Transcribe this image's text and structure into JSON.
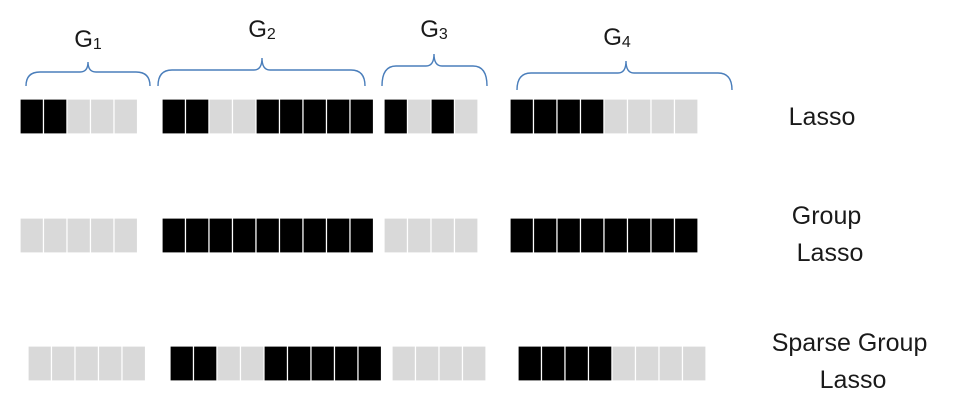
{
  "groups": [
    {
      "label": "G",
      "sub": "1",
      "size": 5
    },
    {
      "label": "G",
      "sub": "2",
      "size": 9
    },
    {
      "label": "G",
      "sub": "3",
      "size": 4
    },
    {
      "label": "G",
      "sub": "4",
      "size": 8
    }
  ],
  "rows": [
    {
      "label_lines": [
        "Lasso"
      ],
      "cells": [
        [
          1,
          1,
          0,
          0,
          0
        ],
        [
          1,
          1,
          0,
          0,
          1,
          1,
          1,
          1,
          1
        ],
        [
          1,
          0,
          1,
          0
        ],
        [
          1,
          1,
          1,
          1,
          0,
          0,
          0,
          0
        ]
      ]
    },
    {
      "label_lines": [
        "Group",
        "Lasso"
      ],
      "cells": [
        [
          0,
          0,
          0,
          0,
          0
        ],
        [
          1,
          1,
          1,
          1,
          1,
          1,
          1,
          1,
          1
        ],
        [
          0,
          0,
          0,
          0
        ],
        [
          1,
          1,
          1,
          1,
          1,
          1,
          1,
          1
        ]
      ]
    },
    {
      "label_lines": [
        "Sparse Group",
        "Lasso"
      ],
      "cells": [
        [
          0,
          0,
          0,
          0,
          0
        ],
        [
          1,
          1,
          0,
          0,
          1,
          1,
          1,
          1,
          1
        ],
        [
          0,
          0,
          0,
          0
        ],
        [
          1,
          1,
          1,
          1,
          0,
          0,
          0,
          0
        ]
      ]
    }
  ],
  "colors": {
    "active": "#000000",
    "inactive": "#d9d9d9",
    "brace": "#4a7ebb"
  }
}
